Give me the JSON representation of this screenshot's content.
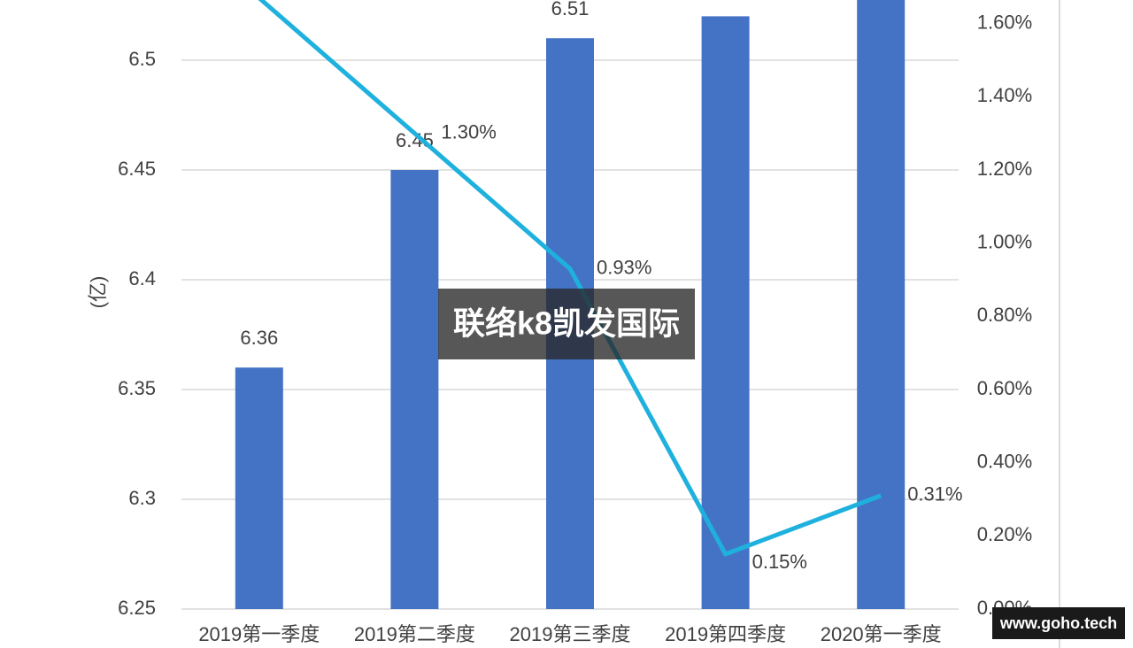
{
  "chart_data": {
    "type": "bar-line",
    "y_label": "(亿)",
    "categories": [
      "2019第一季度",
      "2019第二季度",
      "2019第三季度",
      "2019第四季度",
      "2020第一季度"
    ],
    "series": [
      {
        "name": "bars",
        "type": "bar",
        "color": "#4472c4",
        "values": [
          6.36,
          6.45,
          6.51,
          6.52,
          6.53
        ]
      },
      {
        "name": "line",
        "type": "line",
        "axis": "y2",
        "color": "#1fb1de",
        "values": [
          1.67,
          1.3,
          0.93,
          0.15,
          0.31
        ],
        "value_labels": [
          null,
          "1.30%",
          "0.93%",
          "0.15%",
          "0.31%"
        ]
      }
    ],
    "ylim": [
      6.25,
      6.55
    ],
    "yticks": [
      6.25,
      6.3,
      6.35,
      6.4,
      6.45,
      6.5
    ],
    "y2lim": [
      0,
      1.8
    ],
    "y2ticks": [
      {
        "value": 0,
        "label": "0.00%"
      },
      {
        "value": 0.2,
        "label": "0.20%"
      },
      {
        "value": 0.4,
        "label": "0.40%"
      },
      {
        "value": 0.6,
        "label": "0.60%"
      },
      {
        "value": 0.8,
        "label": "0.80%"
      },
      {
        "value": 1.0,
        "label": "1.00%"
      },
      {
        "value": 1.2,
        "label": "1.20%"
      },
      {
        "value": 1.4,
        "label": "1.40%"
      },
      {
        "value": 1.6,
        "label": "1.60%"
      }
    ],
    "grid": true
  },
  "watermark": "联络k8凯发国际",
  "credit": "www.goho.tech"
}
